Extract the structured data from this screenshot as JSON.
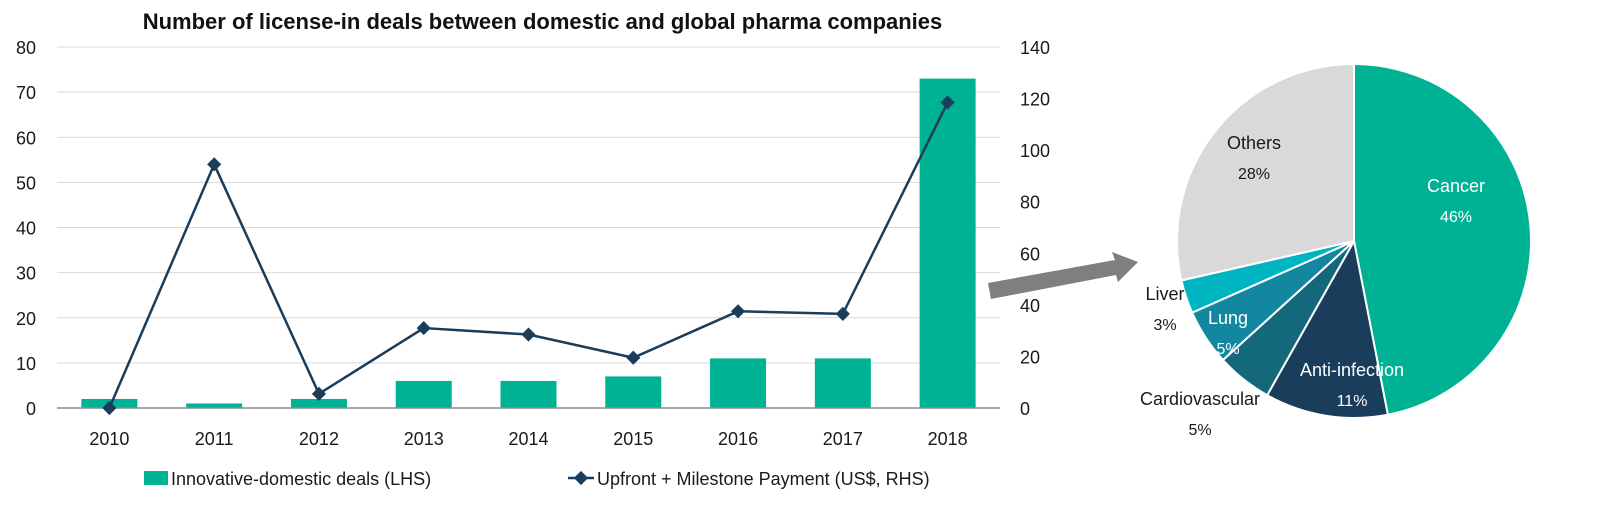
{
  "colors": {
    "bar": "#00b294",
    "line": "#1b3d5c",
    "grid": "#d9d9d9",
    "axis": "#8c8c8c",
    "arrow": "#7f7f7f"
  },
  "chart_data": [
    {
      "type": "bar+line",
      "title": "Number of license-in deals between domestic and global pharma companies",
      "categories": [
        "2010",
        "2011",
        "2012",
        "2013",
        "2014",
        "2015",
        "2016",
        "2017",
        "2018"
      ],
      "left_axis": {
        "min": 0,
        "max": 80,
        "ticks": [
          "0",
          "10",
          "20",
          "30",
          "40",
          "50",
          "60",
          "70",
          "80"
        ]
      },
      "right_axis": {
        "min": 0,
        "max": 140,
        "ticks": [
          "0",
          "20",
          "40",
          "60",
          "80",
          "100",
          "120",
          "140"
        ]
      },
      "grid": true,
      "legend_position": "bottom",
      "series": [
        {
          "name": "Innovative-domestic deals (LHS)",
          "type": "bar",
          "axis": "left",
          "values": [
            2,
            1,
            2,
            6,
            6,
            7,
            11,
            11,
            73
          ]
        },
        {
          "name": "Upfront + Milestone Payment (US$, RHS)",
          "type": "line",
          "axis": "right",
          "values": [
            0,
            94.5,
            5.5,
            31,
            28.5,
            19.5,
            37.5,
            36.5,
            118.5
          ]
        }
      ]
    },
    {
      "type": "pie",
      "slices": [
        {
          "label": "Cancer",
          "pct_label": "46%",
          "value": 46,
          "color": "#00b294",
          "text_color": "#ffffff"
        },
        {
          "label": "Anti-infection",
          "pct_label": "11%",
          "value": 11,
          "color": "#1b3d5c",
          "text_color": "#ffffff"
        },
        {
          "label": "Cardiovascular",
          "pct_label": "5%",
          "value": 5,
          "color": "#13697a",
          "text_color": "#1a1a1a"
        },
        {
          "label": "Lung",
          "pct_label": "5%",
          "value": 5,
          "color": "#1487a0",
          "text_color": "#ffffff"
        },
        {
          "label": "Liver",
          "pct_label": "3%",
          "value": 3,
          "color": "#00b5c2",
          "text_color": "#1a1a1a"
        },
        {
          "label": "Others",
          "pct_label": "28%",
          "value": 28,
          "color": "#d9d9d9",
          "text_color": "#1a1a1a"
        }
      ]
    }
  ]
}
